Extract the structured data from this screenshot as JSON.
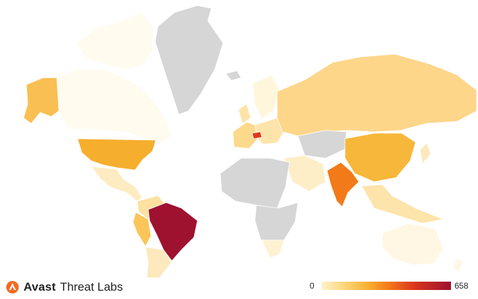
{
  "brand": {
    "name": "Avast",
    "sub": "Threat Labs",
    "logo_icon": "avast-logo-icon",
    "logo_color": "#f36a1f"
  },
  "legend": {
    "min": "0",
    "max": "658",
    "colors": [
      "#fff2cc",
      "#fdd57a",
      "#f9b332",
      "#f37a18",
      "#d8361c",
      "#9e1230"
    ]
  },
  "no_data_color": "#d6d6d6",
  "countries": [
    {
      "name": "Brazil",
      "value": 658
    },
    {
      "name": "India",
      "value": 330
    },
    {
      "name": "Czech Republic",
      "value": 380
    },
    {
      "name": "United States",
      "value": 170
    },
    {
      "name": "China",
      "value": 150
    },
    {
      "name": "Alaska",
      "value": 150
    },
    {
      "name": "Peru",
      "value": 140
    },
    {
      "name": "Russia",
      "value": 90
    },
    {
      "name": "Canada",
      "value": 20
    },
    {
      "name": "Australia",
      "value": 15
    },
    {
      "name": "Mexico",
      "value": 40
    }
  ]
}
